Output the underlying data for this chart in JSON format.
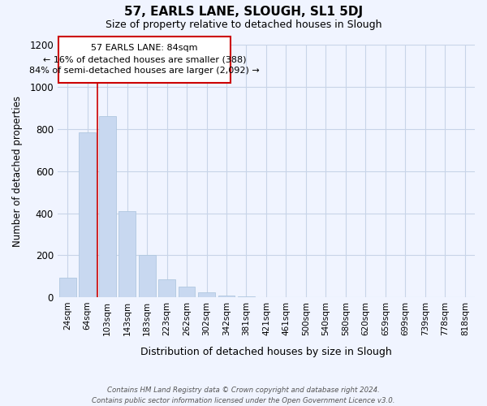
{
  "title": "57, EARLS LANE, SLOUGH, SL1 5DJ",
  "subtitle": "Size of property relative to detached houses in Slough",
  "xlabel": "Distribution of detached houses by size in Slough",
  "ylabel": "Number of detached properties",
  "categories": [
    "24sqm",
    "64sqm",
    "103sqm",
    "143sqm",
    "183sqm",
    "223sqm",
    "262sqm",
    "302sqm",
    "342sqm",
    "381sqm",
    "421sqm",
    "461sqm",
    "500sqm",
    "540sqm",
    "580sqm",
    "620sqm",
    "659sqm",
    "699sqm",
    "739sqm",
    "778sqm",
    "818sqm"
  ],
  "values": [
    95,
    785,
    860,
    410,
    200,
    85,
    52,
    22,
    8,
    3,
    1,
    0,
    1,
    0,
    0,
    1,
    0,
    1,
    0,
    0,
    1
  ],
  "bar_color": "#c8d8f0",
  "bar_edge_color": "#b0c8e0",
  "vline_color": "#cc0000",
  "vline_x": 1.5,
  "annotation_line1": "57 EARLS LANE: 84sqm",
  "annotation_line2": "← 16% of detached houses are smaller (388)",
  "annotation_line3": "84% of semi-detached houses are larger (2,092) →",
  "annotation_box_facecolor": "#ffffff",
  "annotation_box_edgecolor": "#cc0000",
  "ylim": [
    0,
    1200
  ],
  "yticks": [
    0,
    200,
    400,
    600,
    800,
    1000,
    1200
  ],
  "bg_color": "#f0f4ff",
  "grid_color": "#c8d4e8",
  "footer_line1": "Contains HM Land Registry data © Crown copyright and database right 2024.",
  "footer_line2": "Contains public sector information licensed under the Open Government Licence v3.0."
}
